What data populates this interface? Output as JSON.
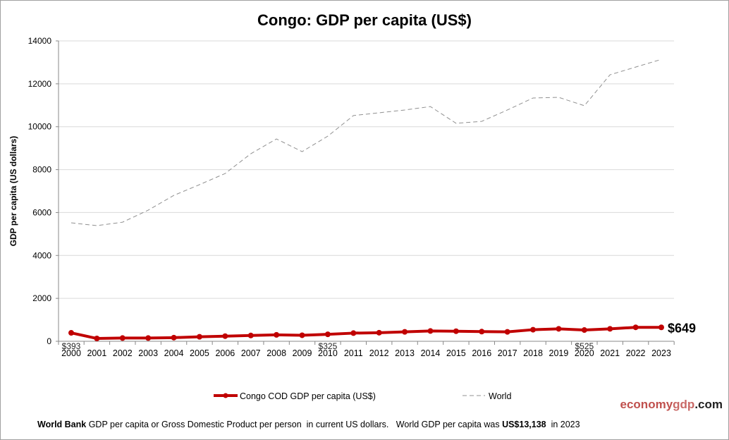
{
  "chart_data": {
    "type": "line",
    "title": "Congo: GDP per capita (US$)",
    "ylabel": "GDP per capita (US dollars)",
    "xlabel": "",
    "ylim": [
      0,
      14000
    ],
    "yticks": [
      0,
      2000,
      4000,
      6000,
      8000,
      10000,
      12000,
      14000
    ],
    "grid": true,
    "legend": "bottom",
    "x": [
      "2000",
      "2001",
      "2002",
      "2003",
      "2004",
      "2005",
      "2006",
      "2007",
      "2008",
      "2009",
      "2010",
      "2011",
      "2012",
      "2013",
      "2014",
      "2015",
      "2016",
      "2017",
      "2018",
      "2019",
      "2020",
      "2021",
      "2022",
      "2023"
    ],
    "series": [
      {
        "name": "Congo COD GDP per capita (US$)",
        "color": "#c00000",
        "style": "solid-markers",
        "values": [
          393,
          131,
          150,
          150,
          170,
          210,
          240,
          270,
          300,
          280,
          325,
          380,
          400,
          440,
          480,
          470,
          450,
          440,
          540,
          580,
          525,
          580,
          650,
          649
        ]
      },
      {
        "name": "World",
        "color": "#909090",
        "style": "dashed",
        "values": [
          5520,
          5390,
          5550,
          6110,
          6800,
          7300,
          7820,
          8740,
          9430,
          8840,
          9560,
          10520,
          10650,
          10780,
          10940,
          10160,
          10250,
          10780,
          11340,
          11370,
          10980,
          12420,
          12780,
          13138
        ]
      }
    ],
    "annotations": [
      {
        "x": "2000",
        "text": "$393"
      },
      {
        "x": "2010",
        "text": "$325"
      },
      {
        "x": "2020",
        "text": "$525"
      },
      {
        "x": "2023",
        "text": "$649"
      }
    ]
  },
  "brand": {
    "part1": "economy",
    "part2": "gdp",
    "part3": ".com"
  },
  "footer": {
    "source": "World Bank",
    "text1": " GDP per capita or Gross Domestic Product per person  in current US dollars.   World GDP per capita was ",
    "value": "US$13,138",
    "text2": "  in 2023"
  }
}
